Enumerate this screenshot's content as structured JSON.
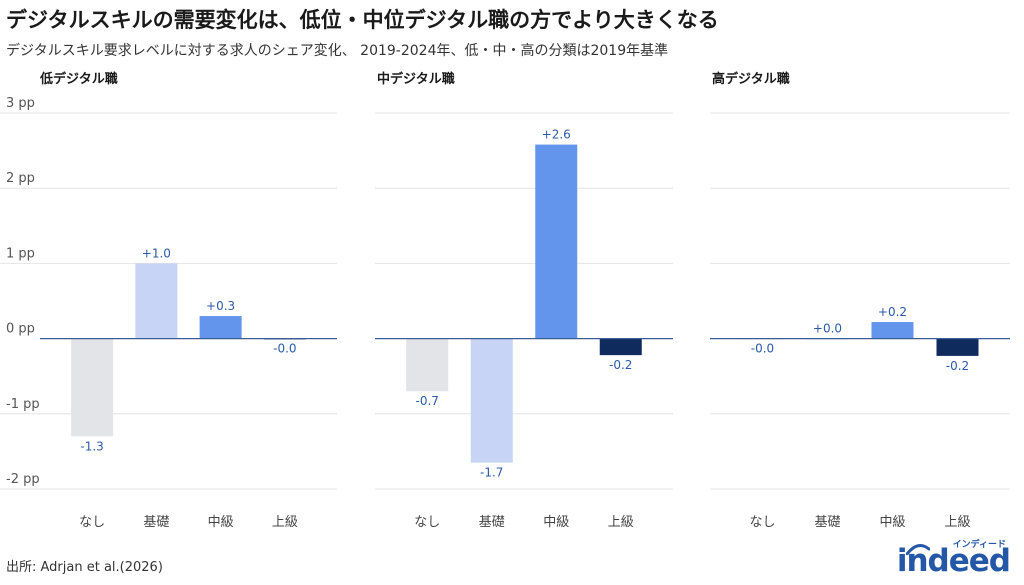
{
  "title": "デジタルスキルの需要変化は、低位・中位デジタル職の方でより大きくなる",
  "subtitle": "デジタルスキル要求レベルに対する求人のシェア変化、 2019-2024年、低・中・高の分類は2019年基準",
  "source": "出所: Adrjan et al.(2026)",
  "logo": {
    "word": "indeed",
    "sub": "インディード"
  },
  "colors": {
    "なし": "#e3e4e8",
    "基礎": "#c7d4f6",
    "中級": "#6495ed",
    "上級": "#0f2a5c",
    "label": "#2b5aa8",
    "grid": "#e4e4e4",
    "zero": "#3a5f94"
  },
  "chart_data": [
    {
      "type": "bar",
      "title": "低デジタル職",
      "categories": [
        "なし",
        "基礎",
        "中級",
        "上級"
      ],
      "values": [
        -1.3,
        1.0,
        0.3,
        -0.0
      ],
      "data_labels": [
        "-1.3",
        "+1.0",
        "+0.3",
        "-0.0"
      ],
      "ylim": [
        -2,
        3
      ],
      "yticks": [
        3,
        2,
        1,
        0,
        -1,
        -2
      ],
      "ytick_labels": [
        "3 pp",
        "2 pp",
        "1 pp",
        "0 pp",
        "-1 pp",
        "-2 pp"
      ],
      "grid": true
    },
    {
      "type": "bar",
      "title": "中デジタル職",
      "categories": [
        "なし",
        "基礎",
        "中級",
        "上級"
      ],
      "values": [
        -0.7,
        -1.65,
        2.58,
        -0.22
      ],
      "data_labels": [
        "-0.7",
        "-1.7",
        "+2.6",
        "-0.2"
      ],
      "ylim": [
        -2,
        3
      ],
      "grid": true
    },
    {
      "type": "bar",
      "title": "高デジタル職",
      "categories": [
        "なし",
        "基礎",
        "中級",
        "上級"
      ],
      "values": [
        -0.0,
        0.0,
        0.22,
        -0.23
      ],
      "data_labels": [
        "-0.0",
        "+0.0",
        "+0.2",
        "-0.2"
      ],
      "ylim": [
        -2,
        3
      ],
      "grid": true
    }
  ]
}
